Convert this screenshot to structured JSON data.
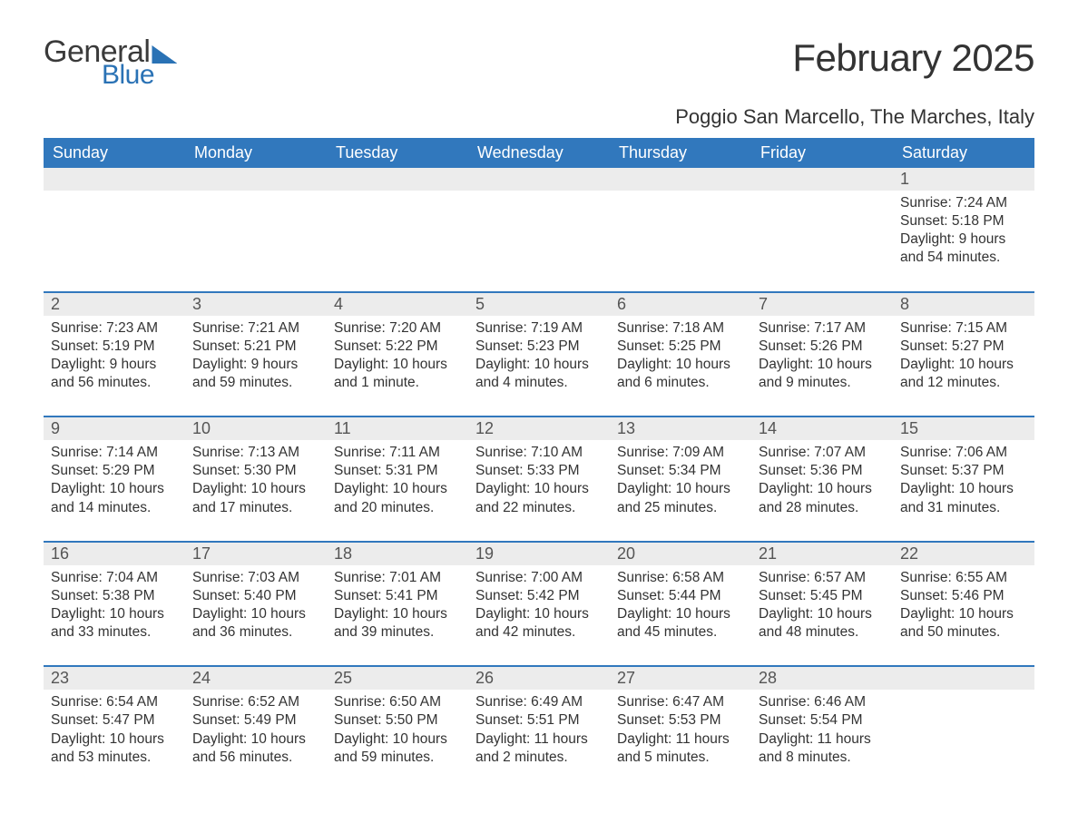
{
  "branding": {
    "word1": "General",
    "word2": "Blue",
    "word1_color": "#3a3a3a",
    "word2_color": "#2a72b5",
    "flag_color": "#2a72b5"
  },
  "title": "February 2025",
  "location": "Poggio San Marcello, The Marches, Italy",
  "colors": {
    "header_bg": "#3178bd",
    "header_text": "#ffffff",
    "daynum_bg": "#ececec",
    "daynum_text": "#555555",
    "body_text": "#333333",
    "row_border": "#3178bd",
    "page_bg": "#ffffff"
  },
  "typography": {
    "title_fontsize": 42,
    "location_fontsize": 22,
    "header_fontsize": 18,
    "daynum_fontsize": 18,
    "body_fontsize": 15.5
  },
  "layout": {
    "columns": 7,
    "rows": 5,
    "first_day_of_week": "Sunday"
  },
  "weekdays": [
    "Sunday",
    "Monday",
    "Tuesday",
    "Wednesday",
    "Thursday",
    "Friday",
    "Saturday"
  ],
  "weeks": [
    [
      null,
      null,
      null,
      null,
      null,
      null,
      {
        "day": "1",
        "sunrise": "Sunrise: 7:24 AM",
        "sunset": "Sunset: 5:18 PM",
        "daylight": "Daylight: 9 hours and 54 minutes."
      }
    ],
    [
      {
        "day": "2",
        "sunrise": "Sunrise: 7:23 AM",
        "sunset": "Sunset: 5:19 PM",
        "daylight": "Daylight: 9 hours and 56 minutes."
      },
      {
        "day": "3",
        "sunrise": "Sunrise: 7:21 AM",
        "sunset": "Sunset: 5:21 PM",
        "daylight": "Daylight: 9 hours and 59 minutes."
      },
      {
        "day": "4",
        "sunrise": "Sunrise: 7:20 AM",
        "sunset": "Sunset: 5:22 PM",
        "daylight": "Daylight: 10 hours and 1 minute."
      },
      {
        "day": "5",
        "sunrise": "Sunrise: 7:19 AM",
        "sunset": "Sunset: 5:23 PM",
        "daylight": "Daylight: 10 hours and 4 minutes."
      },
      {
        "day": "6",
        "sunrise": "Sunrise: 7:18 AM",
        "sunset": "Sunset: 5:25 PM",
        "daylight": "Daylight: 10 hours and 6 minutes."
      },
      {
        "day": "7",
        "sunrise": "Sunrise: 7:17 AM",
        "sunset": "Sunset: 5:26 PM",
        "daylight": "Daylight: 10 hours and 9 minutes."
      },
      {
        "day": "8",
        "sunrise": "Sunrise: 7:15 AM",
        "sunset": "Sunset: 5:27 PM",
        "daylight": "Daylight: 10 hours and 12 minutes."
      }
    ],
    [
      {
        "day": "9",
        "sunrise": "Sunrise: 7:14 AM",
        "sunset": "Sunset: 5:29 PM",
        "daylight": "Daylight: 10 hours and 14 minutes."
      },
      {
        "day": "10",
        "sunrise": "Sunrise: 7:13 AM",
        "sunset": "Sunset: 5:30 PM",
        "daylight": "Daylight: 10 hours and 17 minutes."
      },
      {
        "day": "11",
        "sunrise": "Sunrise: 7:11 AM",
        "sunset": "Sunset: 5:31 PM",
        "daylight": "Daylight: 10 hours and 20 minutes."
      },
      {
        "day": "12",
        "sunrise": "Sunrise: 7:10 AM",
        "sunset": "Sunset: 5:33 PM",
        "daylight": "Daylight: 10 hours and 22 minutes."
      },
      {
        "day": "13",
        "sunrise": "Sunrise: 7:09 AM",
        "sunset": "Sunset: 5:34 PM",
        "daylight": "Daylight: 10 hours and 25 minutes."
      },
      {
        "day": "14",
        "sunrise": "Sunrise: 7:07 AM",
        "sunset": "Sunset: 5:36 PM",
        "daylight": "Daylight: 10 hours and 28 minutes."
      },
      {
        "day": "15",
        "sunrise": "Sunrise: 7:06 AM",
        "sunset": "Sunset: 5:37 PM",
        "daylight": "Daylight: 10 hours and 31 minutes."
      }
    ],
    [
      {
        "day": "16",
        "sunrise": "Sunrise: 7:04 AM",
        "sunset": "Sunset: 5:38 PM",
        "daylight": "Daylight: 10 hours and 33 minutes."
      },
      {
        "day": "17",
        "sunrise": "Sunrise: 7:03 AM",
        "sunset": "Sunset: 5:40 PM",
        "daylight": "Daylight: 10 hours and 36 minutes."
      },
      {
        "day": "18",
        "sunrise": "Sunrise: 7:01 AM",
        "sunset": "Sunset: 5:41 PM",
        "daylight": "Daylight: 10 hours and 39 minutes."
      },
      {
        "day": "19",
        "sunrise": "Sunrise: 7:00 AM",
        "sunset": "Sunset: 5:42 PM",
        "daylight": "Daylight: 10 hours and 42 minutes."
      },
      {
        "day": "20",
        "sunrise": "Sunrise: 6:58 AM",
        "sunset": "Sunset: 5:44 PM",
        "daylight": "Daylight: 10 hours and 45 minutes."
      },
      {
        "day": "21",
        "sunrise": "Sunrise: 6:57 AM",
        "sunset": "Sunset: 5:45 PM",
        "daylight": "Daylight: 10 hours and 48 minutes."
      },
      {
        "day": "22",
        "sunrise": "Sunrise: 6:55 AM",
        "sunset": "Sunset: 5:46 PM",
        "daylight": "Daylight: 10 hours and 50 minutes."
      }
    ],
    [
      {
        "day": "23",
        "sunrise": "Sunrise: 6:54 AM",
        "sunset": "Sunset: 5:47 PM",
        "daylight": "Daylight: 10 hours and 53 minutes."
      },
      {
        "day": "24",
        "sunrise": "Sunrise: 6:52 AM",
        "sunset": "Sunset: 5:49 PM",
        "daylight": "Daylight: 10 hours and 56 minutes."
      },
      {
        "day": "25",
        "sunrise": "Sunrise: 6:50 AM",
        "sunset": "Sunset: 5:50 PM",
        "daylight": "Daylight: 10 hours and 59 minutes."
      },
      {
        "day": "26",
        "sunrise": "Sunrise: 6:49 AM",
        "sunset": "Sunset: 5:51 PM",
        "daylight": "Daylight: 11 hours and 2 minutes."
      },
      {
        "day": "27",
        "sunrise": "Sunrise: 6:47 AM",
        "sunset": "Sunset: 5:53 PM",
        "daylight": "Daylight: 11 hours and 5 minutes."
      },
      {
        "day": "28",
        "sunrise": "Sunrise: 6:46 AM",
        "sunset": "Sunset: 5:54 PM",
        "daylight": "Daylight: 11 hours and 8 minutes."
      },
      null
    ]
  ]
}
